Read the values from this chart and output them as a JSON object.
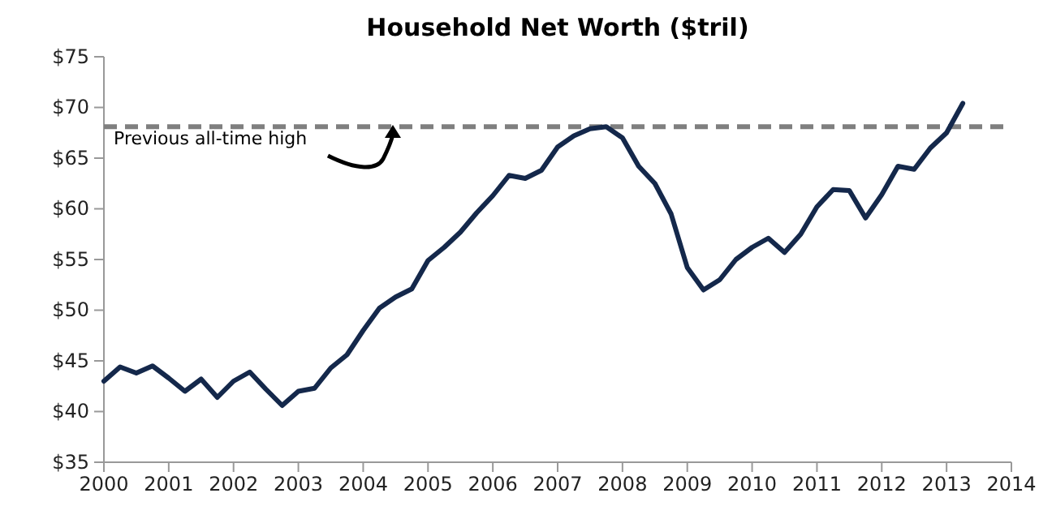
{
  "chart_data": {
    "type": "line",
    "title": "Household Net Worth ($tril)",
    "x": [
      2000,
      2000.25,
      2000.5,
      2000.75,
      2001,
      2001.25,
      2001.5,
      2001.75,
      2002,
      2002.25,
      2002.5,
      2002.75,
      2003,
      2003.25,
      2003.5,
      2003.75,
      2004,
      2004.25,
      2004.5,
      2004.75,
      2005,
      2005.25,
      2005.5,
      2005.75,
      2006,
      2006.25,
      2006.5,
      2006.75,
      2007,
      2007.25,
      2007.5,
      2007.75,
      2008,
      2008.25,
      2008.5,
      2008.75,
      2009,
      2009.25,
      2009.5,
      2009.75,
      2010,
      2010.25,
      2010.5,
      2010.75,
      2011,
      2011.25,
      2011.5,
      2011.75,
      2012,
      2012.25,
      2012.5,
      2012.75,
      2013,
      2013.25
    ],
    "series": [
      {
        "color": "#14284b",
        "values": [
          43.0,
          44.4,
          43.8,
          44.5,
          43.3,
          42.0,
          43.2,
          41.4,
          43.0,
          43.9,
          42.2,
          40.6,
          42.0,
          42.3,
          44.3,
          45.6,
          48.0,
          50.2,
          51.3,
          52.1,
          54.9,
          56.2,
          57.7,
          59.6,
          61.3,
          63.3,
          63.0,
          63.8,
          66.1,
          67.2,
          67.9,
          68.1,
          67.0,
          64.2,
          62.5,
          59.5,
          54.2,
          52.0,
          53.0,
          55.0,
          56.2,
          57.1,
          55.7,
          57.5,
          60.2,
          61.9,
          61.8,
          59.1,
          61.4,
          64.2,
          63.9,
          66.0,
          67.5,
          70.4
        ]
      }
    ],
    "xlim": [
      2000,
      2014
    ],
    "xticks": [
      2000,
      2001,
      2002,
      2003,
      2004,
      2005,
      2006,
      2007,
      2008,
      2009,
      2010,
      2011,
      2012,
      2013,
      2014
    ],
    "ylim": [
      35,
      75
    ],
    "yticks": [
      {
        "value": 35,
        "label": "$35"
      },
      {
        "value": 40,
        "label": "$40"
      },
      {
        "value": 45,
        "label": "$45"
      },
      {
        "value": 50,
        "label": "$50"
      },
      {
        "value": 55,
        "label": "$55"
      },
      {
        "value": 60,
        "label": "$60"
      },
      {
        "value": 65,
        "label": "$65"
      },
      {
        "value": 70,
        "label": "$70"
      },
      {
        "value": 75,
        "label": "$75"
      }
    ],
    "grid": false,
    "marker": "none",
    "line_style": "solid",
    "ref_lines": [
      {
        "axis": "y",
        "value": 68.1,
        "color": "#7f7f7f",
        "line_style": "dashed"
      }
    ],
    "annotations": [
      "Previous all-time high"
    ]
  }
}
